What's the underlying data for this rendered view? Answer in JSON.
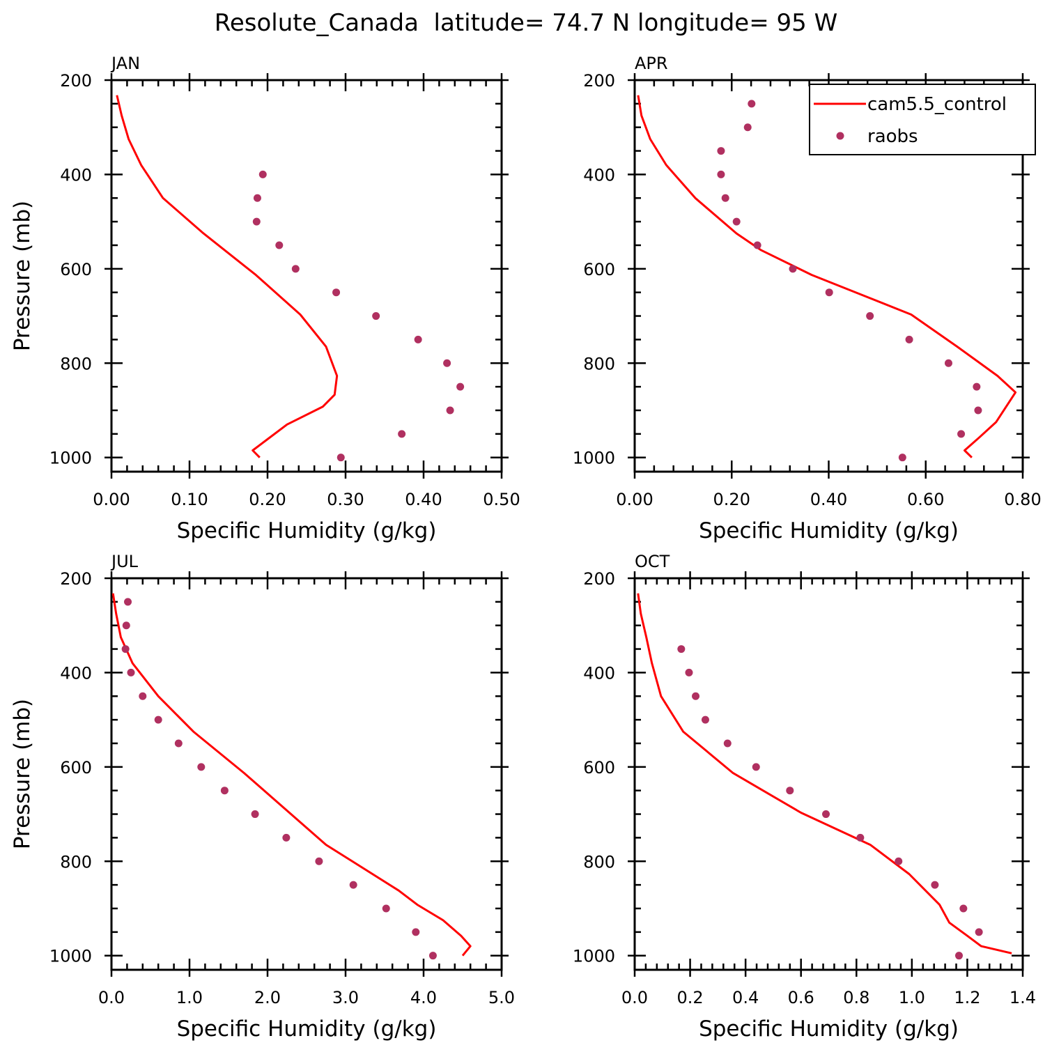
{
  "title": "Resolute_Canada  latitude= 74.7 N longitude= 95 W",
  "colors": {
    "model": "#ff0000",
    "obs": "#b03060"
  },
  "legend": {
    "position": "top-right of APR panel",
    "entries": [
      "cam5.5_control",
      "raobs"
    ]
  },
  "chart_data": [
    {
      "type": "line",
      "panel": "JAN",
      "xlabel": "Specific Humidity (g/kg)",
      "ylabel": "Pressure (mb)",
      "xlim": [
        0,
        0.5
      ],
      "ylim": [
        1030,
        200
      ],
      "xticks": [
        "0.00",
        "0.10",
        "0.20",
        "0.30",
        "0.40",
        "0.50"
      ],
      "yticks": [
        "200",
        "400",
        "600",
        "800",
        "1000"
      ],
      "series": [
        {
          "name": "cam5.5_control",
          "style": "line",
          "x": [
            0.007,
            0.013,
            0.022,
            0.038,
            0.066,
            0.118,
            0.185,
            0.242,
            0.275,
            0.289,
            0.286,
            0.271,
            0.225,
            0.181,
            0.19
          ],
          "y": [
            232,
            275,
            325,
            380,
            450,
            525,
            613,
            697,
            765,
            827,
            867,
            892,
            930,
            985,
            1000
          ]
        },
        {
          "name": "raobs",
          "style": "markers",
          "x": [
            0.194,
            0.187,
            0.186,
            0.215,
            0.236,
            0.288,
            0.339,
            0.393,
            0.43,
            0.447,
            0.434,
            0.372,
            0.294
          ],
          "y": [
            400,
            450,
            500,
            550,
            600,
            650,
            700,
            750,
            800,
            850,
            900,
            950,
            1000
          ]
        }
      ]
    },
    {
      "type": "line",
      "panel": "APR",
      "xlabel": "Specific Humidity (g/kg)",
      "ylabel": "",
      "xlim": [
        0,
        0.8
      ],
      "ylim": [
        1030,
        200
      ],
      "xticks": [
        "0.00",
        "0.20",
        "0.40",
        "0.60",
        "0.80"
      ],
      "yticks": [
        "200",
        "400",
        "600",
        "800",
        "1000"
      ],
      "series": [
        {
          "name": "cam5.5_control",
          "style": "line",
          "x": [
            0.007,
            0.014,
            0.032,
            0.065,
            0.125,
            0.21,
            0.26,
            0.365,
            0.48,
            0.57,
            0.665,
            0.748,
            0.785,
            0.745,
            0.71,
            0.68,
            0.695
          ],
          "y": [
            232,
            275,
            325,
            380,
            450,
            525,
            560,
            613,
            660,
            697,
            765,
            827,
            862,
            925,
            958,
            985,
            1000
          ]
        },
        {
          "name": "raobs",
          "style": "markers",
          "x": [
            0.241,
            0.233,
            0.178,
            0.178,
            0.187,
            0.21,
            0.253,
            0.326,
            0.401,
            0.485,
            0.566,
            0.647,
            0.705,
            0.708,
            0.673,
            0.552
          ],
          "y": [
            250,
            300,
            350,
            400,
            450,
            500,
            550,
            600,
            650,
            700,
            750,
            800,
            850,
            900,
            950,
            1000
          ]
        }
      ]
    },
    {
      "type": "line",
      "panel": "JUL",
      "xlabel": "Specific Humidity (g/kg)",
      "ylabel": "Pressure (mb)",
      "xlim": [
        0,
        5
      ],
      "ylim": [
        1030,
        200
      ],
      "xticks": [
        "0.0",
        "1.0",
        "2.0",
        "3.0",
        "4.0",
        "5.0"
      ],
      "yticks": [
        "200",
        "400",
        "600",
        "800",
        "1000"
      ],
      "series": [
        {
          "name": "cam5.5_control",
          "style": "line",
          "x": [
            0.02,
            0.06,
            0.12,
            0.27,
            0.6,
            1.05,
            1.7,
            2.75,
            3.68,
            3.92,
            4.25,
            4.48,
            4.6,
            4.5
          ],
          "y": [
            232,
            275,
            325,
            380,
            450,
            525,
            613,
            765,
            862,
            892,
            925,
            958,
            980,
            1000
          ]
        },
        {
          "name": "raobs",
          "style": "markers",
          "x": [
            0.21,
            0.19,
            0.18,
            0.25,
            0.4,
            0.6,
            0.86,
            1.15,
            1.45,
            1.84,
            2.24,
            2.66,
            3.1,
            3.52,
            3.9,
            4.12
          ],
          "y": [
            250,
            300,
            350,
            400,
            450,
            500,
            550,
            600,
            650,
            700,
            750,
            800,
            850,
            900,
            950,
            1000
          ]
        }
      ]
    },
    {
      "type": "line",
      "panel": "OCT",
      "xlabel": "Specific Humidity (g/kg)",
      "ylabel": "",
      "xlim": [
        0,
        1.4
      ],
      "ylim": [
        1030,
        200
      ],
      "xticks": [
        "0.0",
        "0.2",
        "0.4",
        "0.6",
        "0.8",
        "1.0",
        "1.2",
        "1.4"
      ],
      "yticks": [
        "200",
        "400",
        "600",
        "800",
        "1000"
      ],
      "series": [
        {
          "name": "cam5.5_control",
          "style": "line",
          "x": [
            0.012,
            0.022,
            0.042,
            0.062,
            0.095,
            0.175,
            0.355,
            0.6,
            0.85,
            0.99,
            1.1,
            1.135,
            1.2,
            1.25,
            1.36
          ],
          "y": [
            232,
            275,
            325,
            380,
            450,
            525,
            613,
            697,
            765,
            827,
            892,
            930,
            958,
            980,
            995
          ]
        },
        {
          "name": "raobs",
          "style": "markers",
          "x": [
            0.168,
            0.196,
            0.22,
            0.255,
            0.335,
            0.438,
            0.56,
            0.69,
            0.814,
            0.952,
            1.083,
            1.186,
            1.242,
            1.17
          ],
          "y": [
            350,
            400,
            450,
            500,
            550,
            600,
            650,
            700,
            750,
            800,
            850,
            900,
            950,
            1000
          ]
        }
      ]
    }
  ]
}
